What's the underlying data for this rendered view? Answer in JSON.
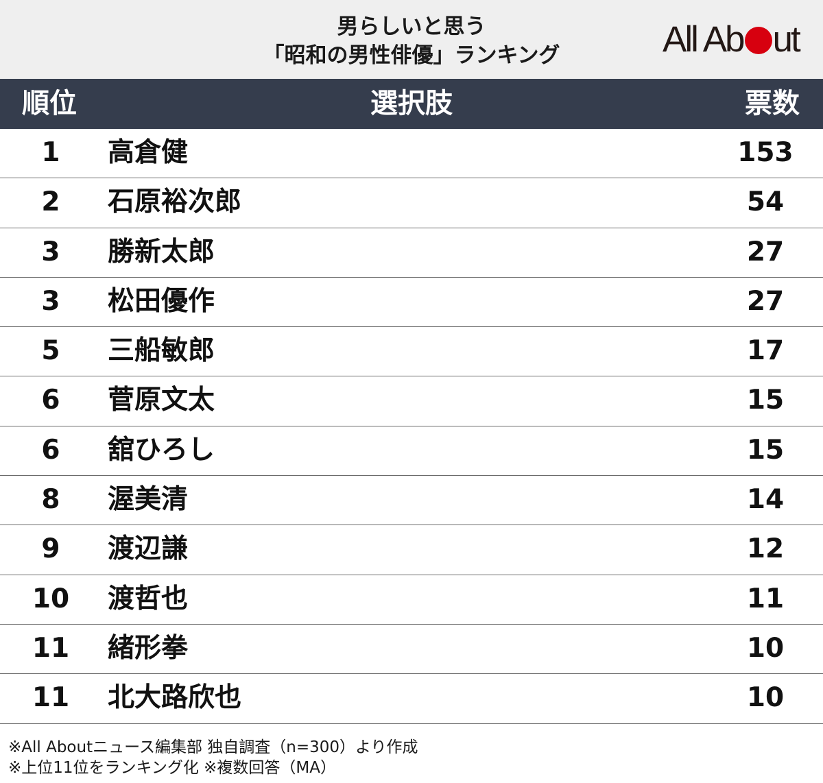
{
  "title": {
    "line1": "男らしいと思う",
    "line2": "「昭和の男性俳優」ランキング"
  },
  "logo": {
    "part1": "All Ab",
    "part2": "ut",
    "dot_color": "#d7000f"
  },
  "colors": {
    "header_bg": "#353d4d",
    "title_bg": "#efefef"
  },
  "chart_data": {
    "type": "table",
    "columns": [
      "順位",
      "選択肢",
      "票数"
    ],
    "rows": [
      {
        "rank": "1",
        "name": "高倉健",
        "votes": "153"
      },
      {
        "rank": "2",
        "name": "石原裕次郎",
        "votes": "54"
      },
      {
        "rank": "3",
        "name": "勝新太郎",
        "votes": "27"
      },
      {
        "rank": "3",
        "name": "松田優作",
        "votes": "27"
      },
      {
        "rank": "5",
        "name": "三船敏郎",
        "votes": "17"
      },
      {
        "rank": "6",
        "name": "菅原文太",
        "votes": "15"
      },
      {
        "rank": "6",
        "name": "舘ひろし",
        "votes": "15"
      },
      {
        "rank": "8",
        "name": "渥美清",
        "votes": "14"
      },
      {
        "rank": "9",
        "name": "渡辺謙",
        "votes": "12"
      },
      {
        "rank": "10",
        "name": "渡哲也",
        "votes": "11"
      },
      {
        "rank": "11",
        "name": "緒形拳",
        "votes": "10"
      },
      {
        "rank": "11",
        "name": "北大路欣也",
        "votes": "10"
      }
    ]
  },
  "footnotes": [
    "※All Aboutニュース編集部 独自調査（n=300）より作成",
    "※上位11位をランキング化 ※複数回答（MA）"
  ]
}
